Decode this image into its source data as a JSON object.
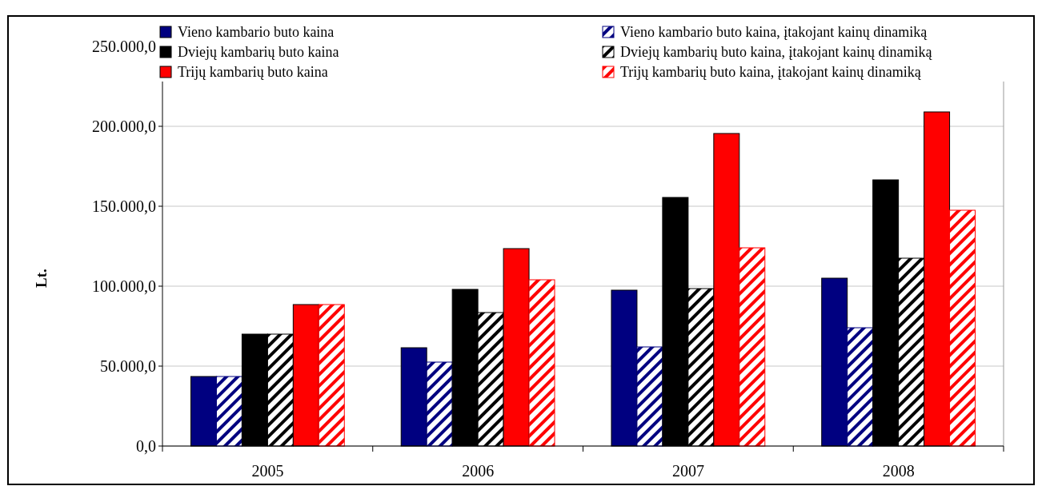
{
  "chart_data": {
    "type": "bar",
    "ylabel": "Lt.",
    "categories": [
      "2005",
      "2006",
      "2007",
      "2008"
    ],
    "series": [
      {
        "name": "Vieno kambario buto kaina",
        "color": "#000080",
        "values": [
          43500,
          61500,
          97500,
          105000
        ]
      },
      {
        "name": "Vieno kambario buto kaina, įtakojant kainų dinamiką",
        "color": "#000080",
        "values": [
          43500,
          52500,
          62000,
          74000
        ]
      },
      {
        "name": "Dviejų kambarių buto kaina",
        "color": "#000000",
        "values": [
          70000,
          98000,
          155500,
          166500
        ]
      },
      {
        "name": "Dviejų kambarių buto kaina, įtakojant kainų dinamiką",
        "color": "#000000",
        "values": [
          70000,
          83500,
          98500,
          117500
        ]
      },
      {
        "name": "Trijų kambarių buto kaina",
        "color": "#ff0000",
        "values": [
          88500,
          123500,
          195500,
          209000
        ]
      },
      {
        "name": "Trijų kambarių buto kaina, įtakojant kainų dinamiką",
        "color": "#ff0000",
        "values": [
          88500,
          104000,
          124000,
          147500
        ]
      }
    ],
    "ylim": [
      0,
      250000
    ],
    "yticks": [
      {
        "value": 0,
        "label": "0,0"
      },
      {
        "value": 50000,
        "label": "50.000,0"
      },
      {
        "value": 100000,
        "label": "100.000,0"
      },
      {
        "value": 150000,
        "label": "150.000,0"
      },
      {
        "value": 200000,
        "label": "200.000,0"
      },
      {
        "value": 250000,
        "label": "250.000,0"
      }
    ],
    "grid": "y",
    "legend": "top"
  }
}
